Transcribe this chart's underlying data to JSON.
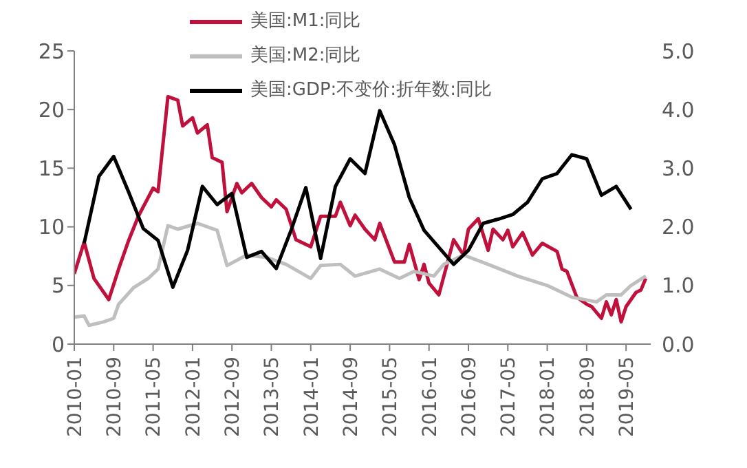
{
  "chart_data": {
    "type": "line",
    "legend": "top",
    "marker": "none",
    "line_style": "solid",
    "grid": false,
    "xlim": [
      "2010-01",
      "2019-10"
    ],
    "xticks": [
      "2010-01",
      "2010-09",
      "2011-05",
      "2012-01",
      "2012-09",
      "2013-05",
      "2014-01",
      "2014-09",
      "2015-05",
      "2016-01",
      "2016-09",
      "2017-05",
      "2018-01",
      "2018-09",
      "2019-05"
    ],
    "ylim": [
      0,
      25
    ],
    "yticks": [
      0,
      5,
      10,
      15,
      20,
      25
    ],
    "y2lim": [
      0,
      5
    ],
    "y2ticks": [
      {
        "value": 0,
        "label": "0.0"
      },
      {
        "value": 1,
        "label": "1.0"
      },
      {
        "value": 2,
        "label": "2.0"
      },
      {
        "value": 3,
        "label": "3.0"
      },
      {
        "value": 4,
        "label": "4.0"
      },
      {
        "value": 5,
        "label": "5.0"
      }
    ],
    "series": [
      {
        "name": "美国:M1:同比",
        "color": "#c0103c",
        "x": [
          "2010-01",
          "2010-03",
          "2010-05",
          "2010-08",
          "2010-10",
          "2010-12",
          "2011-02",
          "2011-05",
          "2011-06",
          "2011-08",
          "2011-10",
          "2011-11",
          "2012-01",
          "2012-02",
          "2012-04",
          "2012-05",
          "2012-07",
          "2012-08",
          "2012-10",
          "2012-11",
          "2013-01",
          "2013-03",
          "2013-05",
          "2013-06",
          "2013-08",
          "2013-10",
          "2014-01",
          "2014-03",
          "2014-06",
          "2014-07",
          "2014-09",
          "2014-10",
          "2014-12",
          "2015-02",
          "2015-03",
          "2015-06",
          "2015-08",
          "2015-09",
          "2015-11",
          "2015-12",
          "2016-01",
          "2016-03",
          "2016-06",
          "2016-08",
          "2016-09",
          "2016-11",
          "2017-01",
          "2017-02",
          "2017-04",
          "2017-05",
          "2017-06",
          "2017-08",
          "2017-10",
          "2017-12",
          "2018-03",
          "2018-04",
          "2018-05",
          "2018-07",
          "2018-09",
          "2018-10",
          "2018-12",
          "2019-01",
          "2019-02",
          "2019-03",
          "2019-04",
          "2019-05",
          "2019-07",
          "2019-08",
          "2019-09"
        ],
        "values": [
          6.0,
          8.7,
          5.6,
          3.8,
          6.4,
          8.8,
          10.9,
          13.3,
          13.0,
          21.1,
          20.8,
          18.6,
          19.3,
          18.0,
          18.7,
          15.9,
          15.5,
          11.3,
          13.7,
          12.9,
          13.7,
          12.5,
          11.7,
          12.3,
          11.5,
          8.9,
          8.3,
          10.9,
          10.9,
          12.1,
          10.1,
          11.0,
          9.8,
          8.9,
          10.3,
          7.0,
          7.0,
          8.5,
          5.5,
          6.8,
          5.2,
          4.2,
          8.9,
          7.6,
          9.8,
          10.7,
          8.0,
          9.8,
          8.9,
          9.7,
          8.3,
          9.5,
          7.6,
          8.6,
          7.9,
          6.4,
          6.2,
          4.0,
          3.4,
          3.2,
          2.2,
          3.6,
          2.5,
          3.8,
          1.9,
          3.2,
          4.4,
          4.6,
          5.6
        ]
      },
      {
        "name": "美国:M2:同比",
        "color": "#bfbfbf",
        "x": [
          "2010-01",
          "2010-03",
          "2010-04",
          "2010-07",
          "2010-09",
          "2010-10",
          "2011-01",
          "2011-04",
          "2011-06",
          "2011-08",
          "2011-10",
          "2012-02",
          "2012-06",
          "2012-08",
          "2012-12",
          "2013-04",
          "2013-08",
          "2014-01",
          "2014-03",
          "2014-07",
          "2014-10",
          "2015-03",
          "2015-07",
          "2015-10",
          "2016-02",
          "2016-04",
          "2016-08",
          "2017-01",
          "2017-07",
          "2018-01",
          "2018-06",
          "2018-11",
          "2019-01",
          "2019-04",
          "2019-06",
          "2019-09"
        ],
        "values": [
          2.3,
          2.4,
          1.6,
          1.9,
          2.2,
          3.4,
          4.8,
          5.6,
          6.4,
          10.1,
          9.8,
          10.3,
          9.7,
          6.7,
          7.6,
          7.4,
          6.8,
          5.6,
          6.7,
          6.8,
          5.8,
          6.4,
          5.6,
          6.2,
          5.8,
          6.8,
          7.6,
          6.8,
          5.8,
          5.0,
          4.0,
          3.6,
          4.2,
          4.2,
          5.0,
          5.8
        ]
      },
      {
        "name": "美国:GDP:不变价:折年数:同比",
        "color": "#000000",
        "axis": "y2",
        "x": [
          "2010-03",
          "2010-06",
          "2010-09",
          "2010-12",
          "2011-03",
          "2011-06",
          "2011-09",
          "2011-12",
          "2012-03",
          "2012-06",
          "2012-09",
          "2012-12",
          "2013-03",
          "2013-06",
          "2013-09",
          "2013-12",
          "2014-03",
          "2014-06",
          "2014-09",
          "2014-12",
          "2015-03",
          "2015-06",
          "2015-09",
          "2015-12",
          "2016-03",
          "2016-06",
          "2016-09",
          "2016-12",
          "2017-03",
          "2017-06",
          "2017-09",
          "2017-12",
          "2018-03",
          "2018-06",
          "2018-09",
          "2018-12",
          "2019-03",
          "2019-06"
        ],
        "values": [
          1.72,
          2.86,
          3.2,
          2.6,
          1.97,
          1.77,
          0.97,
          1.6,
          2.69,
          2.38,
          2.57,
          1.48,
          1.58,
          1.29,
          1.94,
          2.67,
          1.46,
          2.69,
          3.16,
          2.91,
          3.98,
          3.4,
          2.5,
          1.94,
          1.65,
          1.36,
          1.6,
          2.06,
          2.13,
          2.21,
          2.42,
          2.82,
          2.91,
          3.23,
          3.16,
          2.54,
          2.69,
          2.3
        ]
      }
    ]
  }
}
